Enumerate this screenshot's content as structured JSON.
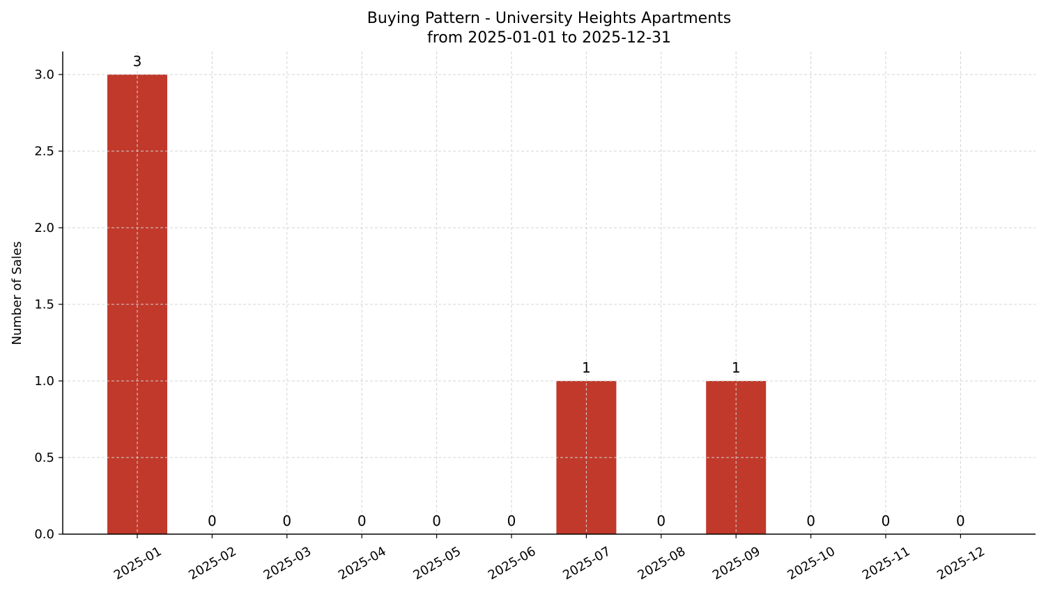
{
  "chart_data": {
    "type": "bar",
    "title": "Buying Pattern - University Heights Apartments",
    "subtitle": "from 2025-01-01 to 2025-12-31",
    "xlabel": "",
    "ylabel": "Number of Sales",
    "categories": [
      "2025-01",
      "2025-02",
      "2025-03",
      "2025-04",
      "2025-05",
      "2025-06",
      "2025-07",
      "2025-08",
      "2025-09",
      "2025-10",
      "2025-11",
      "2025-12"
    ],
    "values": [
      3,
      0,
      0,
      0,
      0,
      0,
      1,
      0,
      1,
      0,
      0,
      0
    ],
    "data_labels": [
      "3",
      "0",
      "0",
      "0",
      "0",
      "0",
      "1",
      "0",
      "1",
      "0",
      "0",
      "0"
    ],
    "ylim": [
      0,
      3.15
    ],
    "yticks": [
      0.0,
      0.5,
      1.0,
      1.5,
      2.0,
      2.5,
      3.0
    ],
    "ytick_labels": [
      "0.0",
      "0.5",
      "1.0",
      "1.5",
      "2.0",
      "2.5",
      "3.0"
    ],
    "grid": true,
    "bar_color": "#c0392b"
  }
}
